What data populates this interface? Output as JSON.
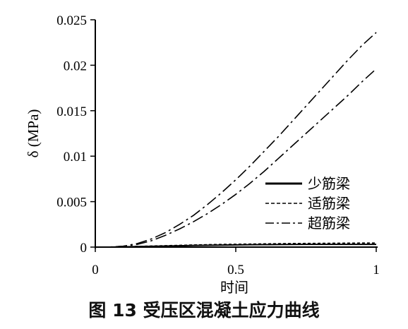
{
  "caption": "图 13  受压区混凝土应力曲线",
  "chart_data": {
    "type": "line",
    "xlabel": "时间",
    "ylabel": "δ (MPa)",
    "xlim": [
      0,
      1
    ],
    "ylim": [
      0,
      0.025
    ],
    "x_ticks": [
      "0",
      "0.5",
      "1"
    ],
    "y_ticks": [
      "0",
      "0.005",
      "0.01",
      "0.015",
      "0.02",
      "0.025"
    ],
    "grid": false,
    "legend_position": "right",
    "x": [
      0,
      0.05,
      0.1,
      0.15,
      0.2,
      0.25,
      0.3,
      0.35,
      0.4,
      0.45,
      0.5,
      0.55,
      0.6,
      0.65,
      0.7,
      0.75,
      0.8,
      0.85,
      0.9,
      0.95,
      1.0
    ],
    "series": [
      {
        "name": "少筋梁",
        "style": "solid",
        "color": "#000000",
        "values": [
          0,
          0,
          3e-05,
          6e-05,
          9e-05,
          0.00012,
          0.00015,
          0.00018,
          0.0002,
          0.00022,
          0.00024,
          0.00026,
          0.00027,
          0.00028,
          0.00029,
          0.0003,
          0.0003,
          0.0003,
          0.0003,
          0.0003,
          0.0003
        ]
      },
      {
        "name": "适筋梁",
        "style": "dashed",
        "color": "#000000",
        "values": [
          0,
          0,
          4e-05,
          8e-05,
          0.00012,
          0.00016,
          0.0002,
          0.00024,
          0.00027,
          0.0003,
          0.00032,
          0.00034,
          0.00036,
          0.00038,
          0.0004,
          0.00041,
          0.00042,
          0.00043,
          0.00044,
          0.00045,
          0.00045
        ]
      },
      {
        "name": "超筋梁",
        "style": "dashdot",
        "color": "#000000",
        "values": [
          0,
          0,
          0.0001,
          0.0004,
          0.0009,
          0.0016,
          0.0025,
          0.0035,
          0.0047,
          0.006,
          0.0074,
          0.0089,
          0.0105,
          0.0121,
          0.0138,
          0.0155,
          0.0172,
          0.0189,
          0.0206,
          0.0222,
          0.0236
        ]
      },
      {
        "name": "",
        "style": "dashdot",
        "color": "#000000",
        "values": [
          0,
          0,
          0.0001,
          0.0003,
          0.0007,
          0.0013,
          0.002,
          0.0028,
          0.0037,
          0.0047,
          0.0058,
          0.007,
          0.0083,
          0.0097,
          0.0111,
          0.0125,
          0.0139,
          0.0153,
          0.0167,
          0.0182,
          0.0196
        ]
      }
    ]
  }
}
